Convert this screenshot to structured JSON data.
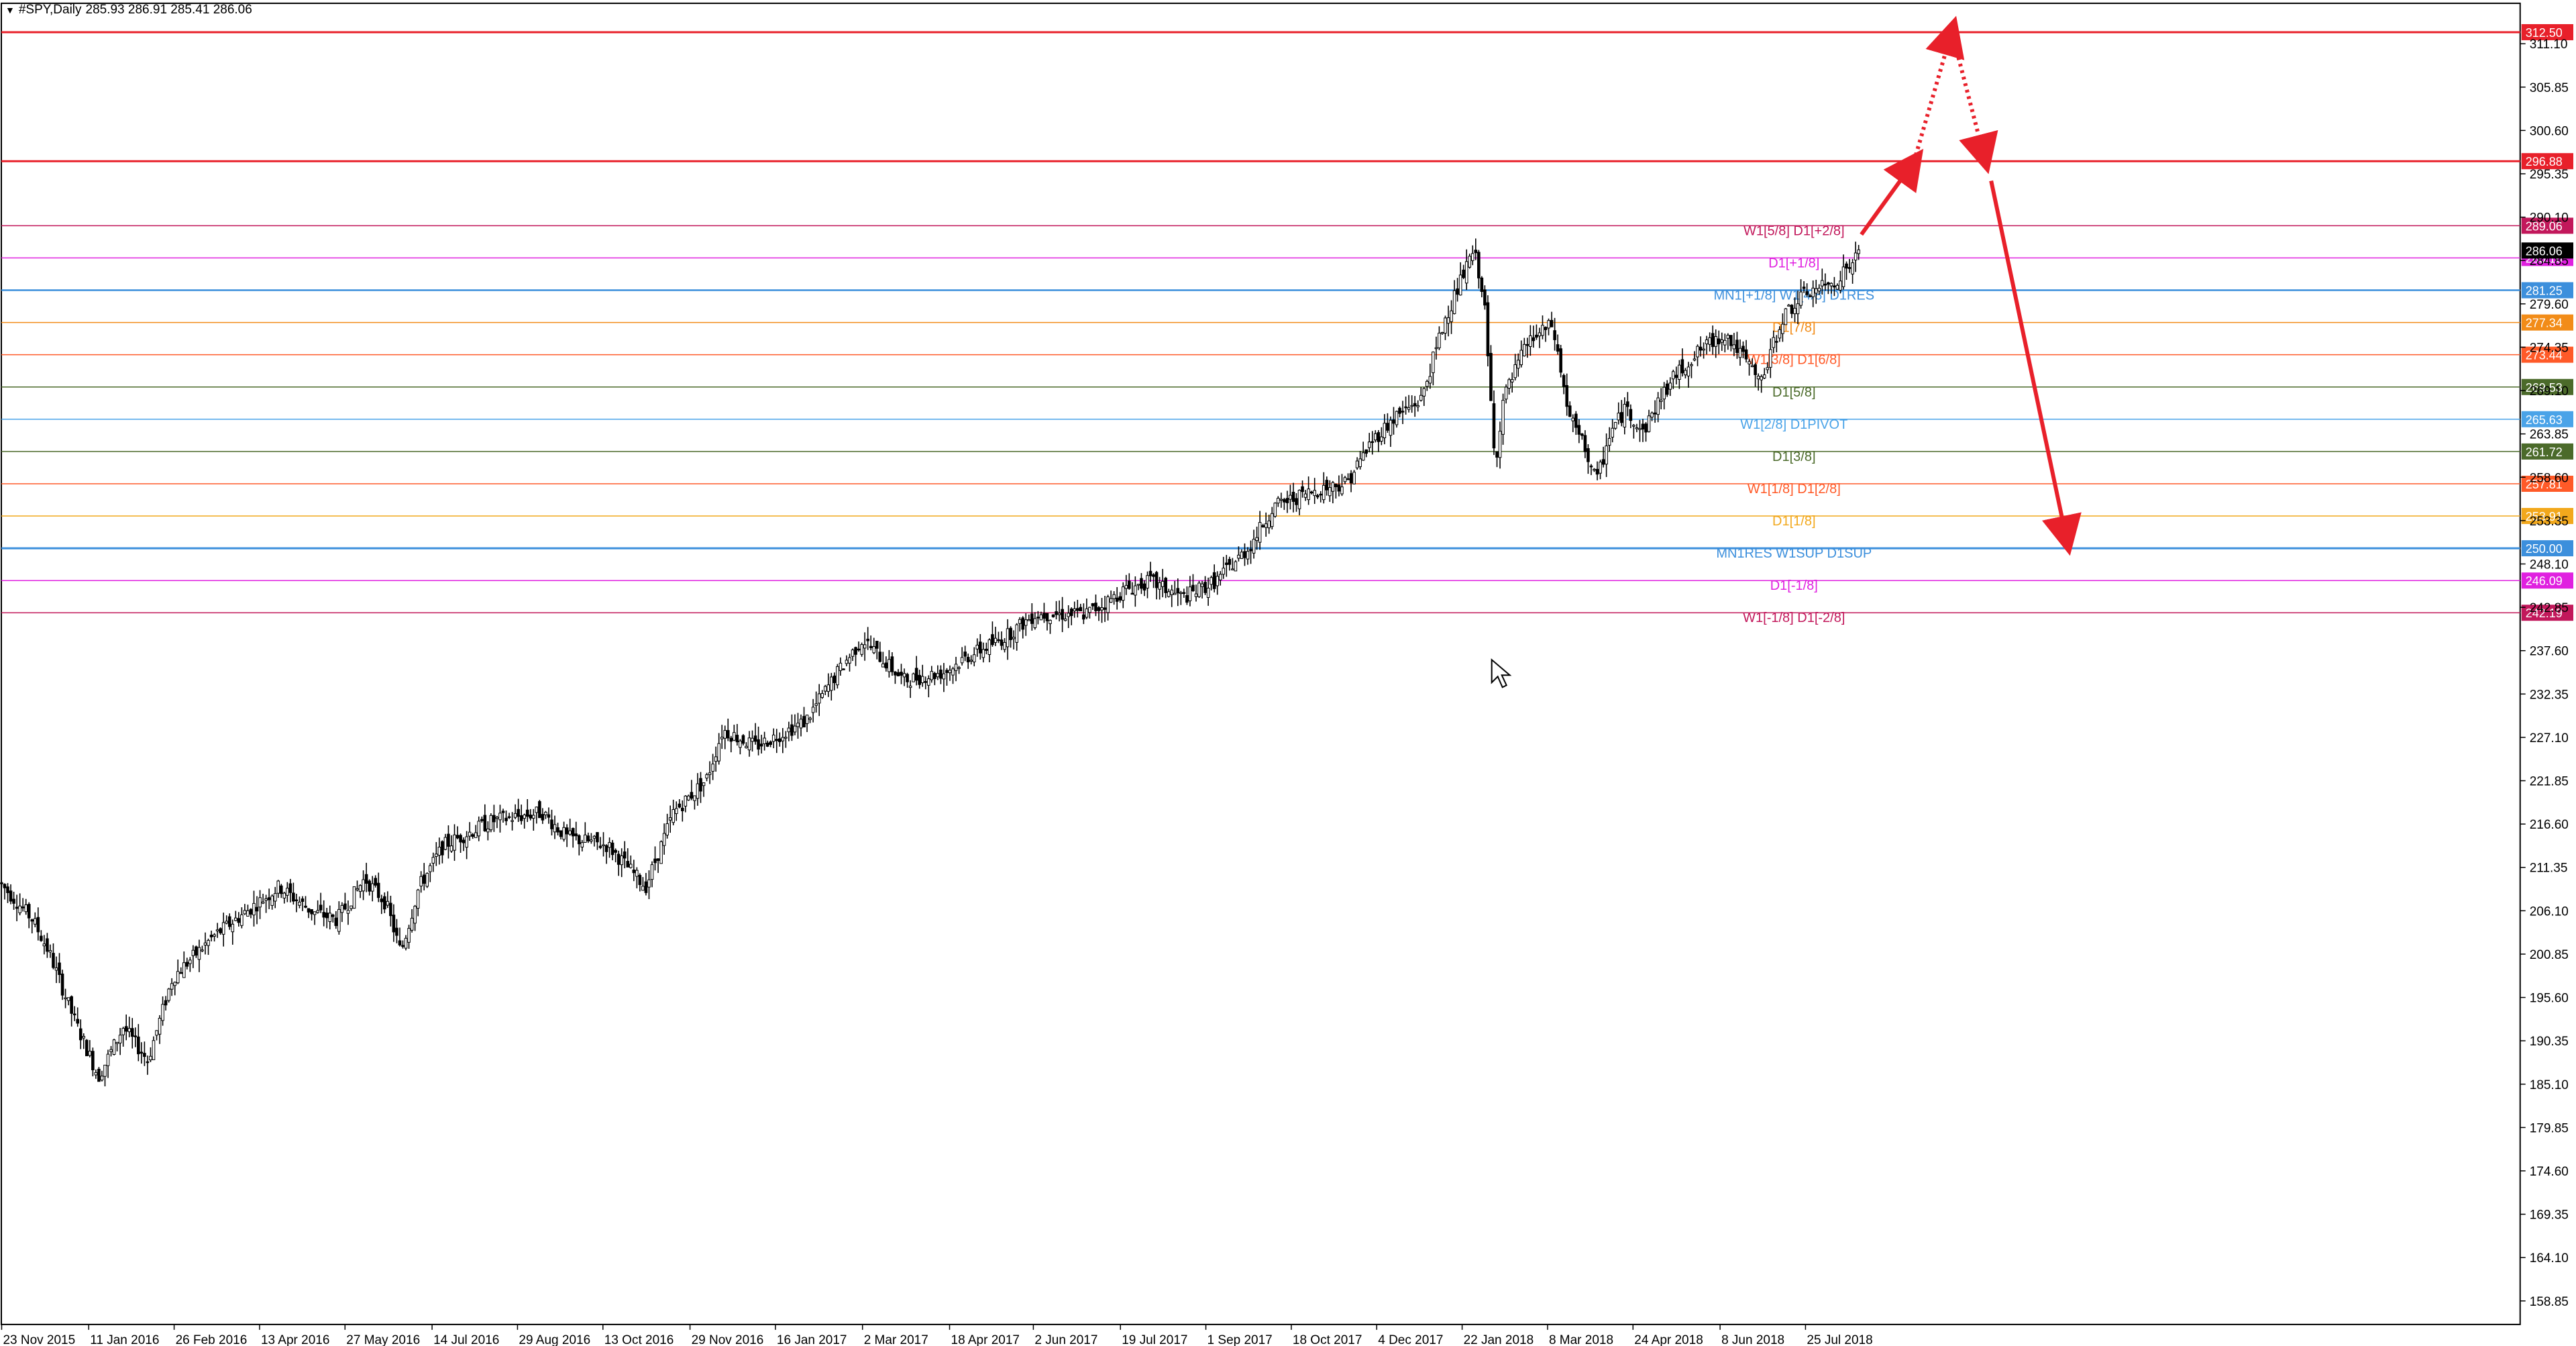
{
  "header": {
    "symbol": "#SPY,Daily",
    "ohlc": "285.93 286.91 285.41 286.06"
  },
  "colors": {
    "background": "#ffffff",
    "axis": "#000000",
    "candle": "#000000",
    "arrow": "#e8202a"
  },
  "chart_data": {
    "type": "candlestick",
    "title": "#SPY,Daily",
    "ylim": [
      156,
      316
    ],
    "y_ticks": [
      "311.10",
      "305.85",
      "300.60",
      "295.35",
      "290.10",
      "284.85",
      "279.60",
      "274.35",
      "269.10",
      "263.85",
      "258.60",
      "253.35",
      "248.10",
      "242.85",
      "237.60",
      "232.35",
      "227.10",
      "221.85",
      "216.60",
      "211.35",
      "206.10",
      "200.85",
      "195.60",
      "190.35",
      "185.10",
      "179.85",
      "174.60",
      "169.35",
      "164.10",
      "158.85"
    ],
    "x_labels": [
      "23 Nov 2015",
      "11 Jan 2016",
      "26 Feb 2016",
      "13 Apr 2016",
      "27 May 2016",
      "14 Jul 2016",
      "29 Aug 2016",
      "13 Oct 2016",
      "29 Nov 2016",
      "16 Jan 2017",
      "2 Mar 2017",
      "18 Apr 2017",
      "2 Jun 2017",
      "19 Jul 2017",
      "1 Sep 2017",
      "18 Oct 2017",
      "4 Dec 2017",
      "22 Jan 2018",
      "8 Mar 2018",
      "24 Apr 2018",
      "8 Jun 2018",
      "25 Jul 2018"
    ],
    "price_path": [
      [
        0,
        209.5
      ],
      [
        20,
        205
      ],
      [
        30,
        201
      ],
      [
        45,
        193
      ],
      [
        60,
        186
      ],
      [
        75,
        192
      ],
      [
        90,
        188
      ],
      [
        105,
        198
      ],
      [
        130,
        203
      ],
      [
        150,
        206
      ],
      [
        170,
        209
      ],
      [
        190,
        206
      ],
      [
        205,
        205
      ],
      [
        222,
        210
      ],
      [
        235,
        207
      ],
      [
        244,
        201
      ],
      [
        255,
        209
      ],
      [
        270,
        214
      ],
      [
        300,
        217
      ],
      [
        330,
        218
      ],
      [
        345,
        215
      ],
      [
        370,
        214
      ],
      [
        393,
        209
      ],
      [
        410,
        218
      ],
      [
        430,
        222
      ],
      [
        440,
        228
      ],
      [
        460,
        226
      ],
      [
        490,
        229
      ],
      [
        510,
        235
      ],
      [
        525,
        239
      ],
      [
        535,
        237
      ],
      [
        550,
        234
      ],
      [
        575,
        235
      ],
      [
        590,
        237
      ],
      [
        610,
        239
      ],
      [
        630,
        242
      ],
      [
        660,
        242
      ],
      [
        670,
        243
      ],
      [
        685,
        245
      ],
      [
        700,
        246
      ],
      [
        720,
        244
      ],
      [
        740,
        246
      ],
      [
        760,
        250
      ],
      [
        775,
        255
      ],
      [
        800,
        257
      ],
      [
        820,
        258
      ],
      [
        835,
        263
      ],
      [
        850,
        266
      ],
      [
        865,
        268
      ],
      [
        880,
        278
      ],
      [
        897,
        286
      ],
      [
        903,
        281
      ],
      [
        910,
        260
      ],
      [
        915,
        268
      ],
      [
        930,
        275
      ],
      [
        945,
        277
      ],
      [
        955,
        266
      ],
      [
        965,
        262
      ],
      [
        972,
        258
      ],
      [
        980,
        264
      ],
      [
        990,
        267
      ],
      [
        1000,
        264
      ],
      [
        1010,
        268
      ],
      [
        1020,
        271
      ],
      [
        1035,
        274
      ],
      [
        1050,
        276
      ],
      [
        1065,
        272
      ],
      [
        1072,
        270
      ],
      [
        1085,
        278
      ],
      [
        1100,
        281
      ],
      [
        1115,
        282
      ],
      [
        1125,
        284
      ],
      [
        1133,
        286
      ]
    ],
    "levels": [
      {
        "price": 312.5,
        "label": "",
        "tag": "312.50",
        "color": "#e8202a",
        "width": 3
      },
      {
        "price": 296.88,
        "label": "",
        "tag": "296.88",
        "color": "#e8202a",
        "width": 3
      },
      {
        "price": 289.06,
        "label": "W1[5/8] D1[+2/8]",
        "tag": "289.06",
        "color": "#c2185b",
        "width": 1.5
      },
      {
        "price": 285.16,
        "label": "D1[+1/8]",
        "tag": "285.16",
        "color": "#e020e0",
        "width": 1.5
      },
      {
        "price": 281.25,
        "label": "MN1[+1/8] W1[4/8] D1RES",
        "tag": "281.25",
        "color": "#3c8fdc",
        "width": 2.5
      },
      {
        "price": 277.34,
        "label": "D1[7/8]",
        "tag": "277.34",
        "color": "#f28c18",
        "width": 1.5
      },
      {
        "price": 273.44,
        "label": "W1[3/8] D1[6/8]",
        "tag": "273.44",
        "color": "#ff5a28",
        "width": 1.5
      },
      {
        "price": 269.53,
        "label": "D1[5/8]",
        "tag": "269.53",
        "color": "#4b6a2a",
        "width": 1.5
      },
      {
        "price": 265.63,
        "label": "W1[2/8] D1PIVOT",
        "tag": "265.63",
        "color": "#4aa3e8",
        "width": 1.5
      },
      {
        "price": 261.72,
        "label": "D1[3/8]",
        "tag": "261.72",
        "color": "#4b6a2a",
        "width": 1.5
      },
      {
        "price": 257.81,
        "label": "W1[1/8] D1[2/8]",
        "tag": "257.81",
        "color": "#ff5a28",
        "width": 1.5
      },
      {
        "price": 253.91,
        "label": "D1[1/8]",
        "tag": "253.91",
        "color": "#f2a81c",
        "width": 1.5
      },
      {
        "price": 250.0,
        "label": "MN1RES W1SUP D1SUP",
        "tag": "250.00",
        "color": "#3c8fdc",
        "width": 3
      },
      {
        "price": 246.09,
        "label": "D1[-1/8]",
        "tag": "246.09",
        "color": "#e020e0",
        "width": 1.5
      },
      {
        "price": 242.19,
        "label": "W1[-1/8] D1[-2/8]",
        "tag": "242.19",
        "color": "#c2185b",
        "width": 1.5
      }
    ],
    "current_price": {
      "value": 286.06,
      "tag": "286.06"
    },
    "forecast_arrows": [
      {
        "points": [
          [
            1133,
            288
          ],
          [
            1165,
            296.8
          ]
        ],
        "style": "solid"
      },
      {
        "points": [
          [
            1165,
            296.8
          ],
          [
            1188,
            312.6
          ]
        ],
        "style": "dotted"
      },
      {
        "points": [
          [
            1188,
            312.6
          ],
          [
            1208,
            297.2
          ]
        ],
        "style": "dotted"
      },
      {
        "points": [
          [
            1212,
            294.5
          ],
          [
            1258,
            251
          ]
        ],
        "style": "solid"
      }
    ]
  }
}
